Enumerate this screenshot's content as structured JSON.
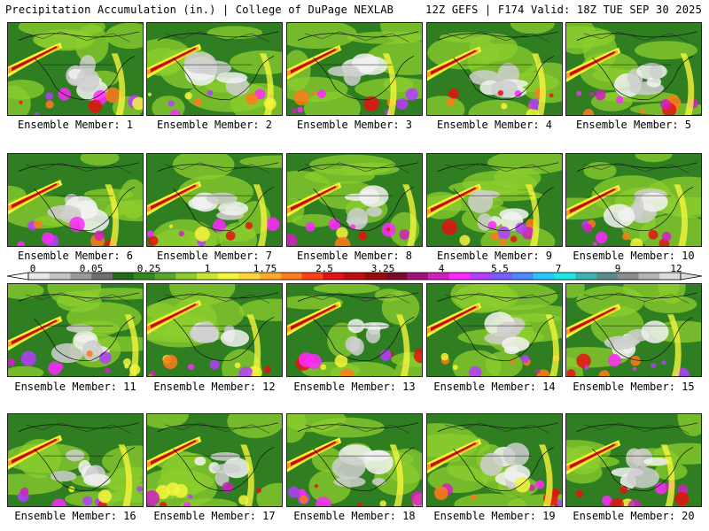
{
  "header": {
    "title": "Precipitation Accumulation (in.) | College of DuPage NEXLAB",
    "run_info": "12Z GEFS | F174 Valid: 18Z TUE SEP 30 2025"
  },
  "members": [
    {
      "label": "Ensemble Member: 1"
    },
    {
      "label": "Ensemble Member: 2"
    },
    {
      "label": "Ensemble Member: 3"
    },
    {
      "label": "Ensemble Member: 4"
    },
    {
      "label": "Ensemble Member: 5"
    },
    {
      "label": "Ensemble Member: 6"
    },
    {
      "label": "Ensemble Member: 7"
    },
    {
      "label": "Ensemble Member: 8"
    },
    {
      "label": "Ensemble Member: 9"
    },
    {
      "label": "Ensemble Member: 10"
    },
    {
      "label": "Ensemble Member: 11"
    },
    {
      "label": "Ensemble Member: 12"
    },
    {
      "label": "Ensemble Member: 13"
    },
    {
      "label": "Ensemble Member: 14"
    },
    {
      "label": "Ensemble Member: 15"
    },
    {
      "label": "Ensemble Member: 16"
    },
    {
      "label": "Ensemble Member: 17"
    },
    {
      "label": "Ensemble Member: 18"
    },
    {
      "label": "Ensemble Member: 19"
    },
    {
      "label": "Ensemble Member: 20"
    }
  ],
  "colorbar": {
    "ticks": [
      "0",
      "0.05",
      "0.25",
      "1",
      "1.75",
      "2.5",
      "3.25",
      "4",
      "5.5",
      "7",
      "9",
      "12"
    ],
    "colors": [
      "#e8e8e8",
      "#c4c4c4",
      "#9a9a9a",
      "#6e6e6e",
      "#1f6b1a",
      "#2f8a22",
      "#55a82a",
      "#8ccd2e",
      "#c8e632",
      "#f5f53c",
      "#ffd43a",
      "#ffaa2a",
      "#ff7a1a",
      "#ff4010",
      "#e61010",
      "#c20c0c",
      "#9a0808",
      "#7a0a2a",
      "#a0107a",
      "#d21ec0",
      "#ff28ff",
      "#b43cff",
      "#7a5cff",
      "#4c8cff",
      "#28c8ff",
      "#1ee6e6",
      "#3cb4b4",
      "#5a8c8c",
      "#8c8c8c",
      "#b4b4b4",
      "#dcdcdc"
    ]
  }
}
